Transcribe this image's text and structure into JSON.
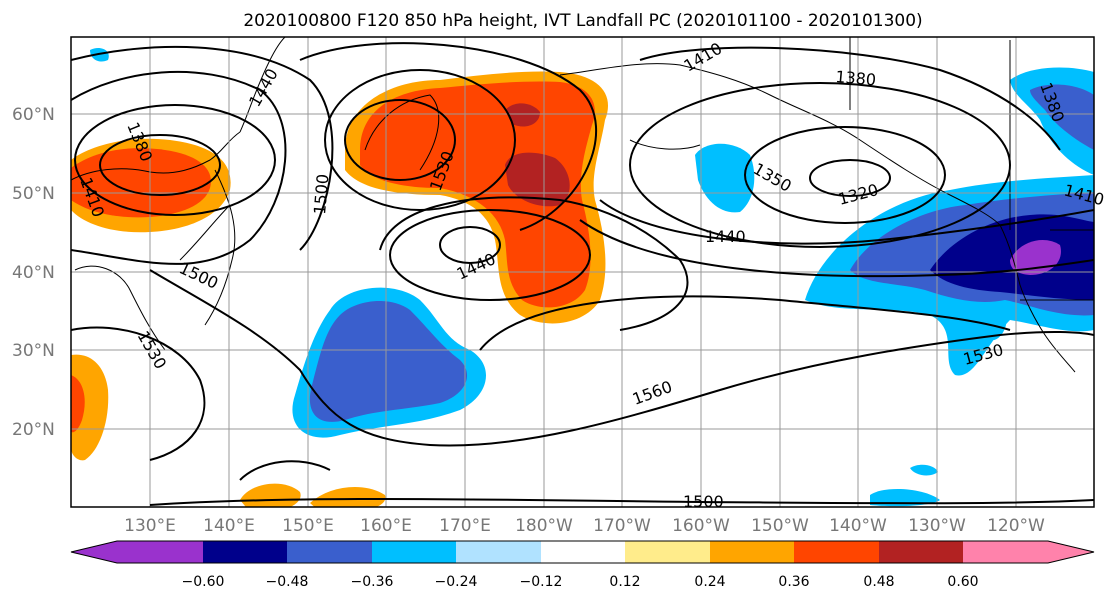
{
  "title": "2020100800 F120 850 hPa height, IVT Landfall PC (2020101100 - 2020101300)",
  "lon_labels": [
    "130°E",
    "140°E",
    "150°E",
    "160°E",
    "170°E",
    "180°W",
    "170°W",
    "160°W",
    "150°W",
    "140°W",
    "130°W",
    "120°W"
  ],
  "lat_labels": [
    "60°N",
    "50°N",
    "40°N",
    "30°N",
    "20°N"
  ],
  "contour_labels": [
    "1380",
    "1410",
    "1440",
    "1500",
    "1530",
    "1440",
    "1410",
    "1380",
    "1350",
    "1320",
    "1440",
    "1410",
    "1380",
    "1500",
    "1530",
    "1560",
    "1500",
    "1530"
  ],
  "colorbar": {
    "ticks": [
      "−0.60",
      "−0.48",
      "−0.36",
      "−0.24",
      "−0.12",
      "0.12",
      "0.24",
      "0.36",
      "0.48",
      "0.60"
    ],
    "colors": [
      "#9a32cd",
      "#00008b",
      "#3a5fcd",
      "#00bfff",
      "#b0e2ff",
      "#ffffff",
      "#ffec8b",
      "#ffa500",
      "#ff4500",
      "#b22222",
      "#ff82ab"
    ]
  }
}
